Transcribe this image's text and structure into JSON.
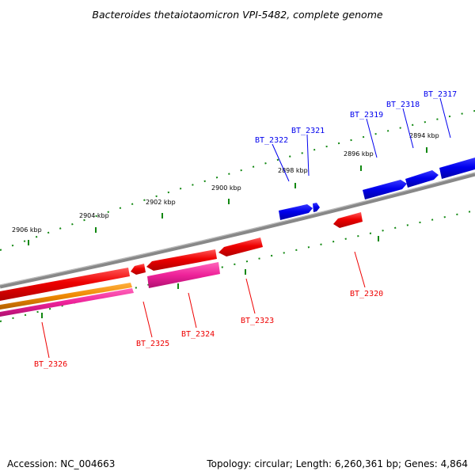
{
  "title": "Bacteroides thetaiotaomicron VPI-5482, complete genome",
  "footer": {
    "accession": "Accession: NC_004663",
    "summary": "Topology: circular; Length: 6,260,361 bp; Genes: 4,864"
  },
  "ruler_labels": [
    "2906 kbp",
    "2904 kbp",
    "2902 kbp",
    "2900 kbp",
    "2898 kbp",
    "2896 kbp",
    "2894 kbp"
  ],
  "colors": {
    "forward_gene": "#0000ee",
    "reverse_gene": "#ee0000",
    "pink_track": "#ee2299",
    "orange_track": "#ee8800",
    "backbone": "#777777",
    "ticks": "#118811"
  },
  "genes_forward": [
    "BT_2322",
    "BT_2321",
    "BT_2319",
    "BT_2318",
    "BT_2317"
  ],
  "genes_reverse": [
    "BT_2326",
    "BT_2325",
    "BT_2324",
    "BT_2323",
    "BT_2320"
  ]
}
